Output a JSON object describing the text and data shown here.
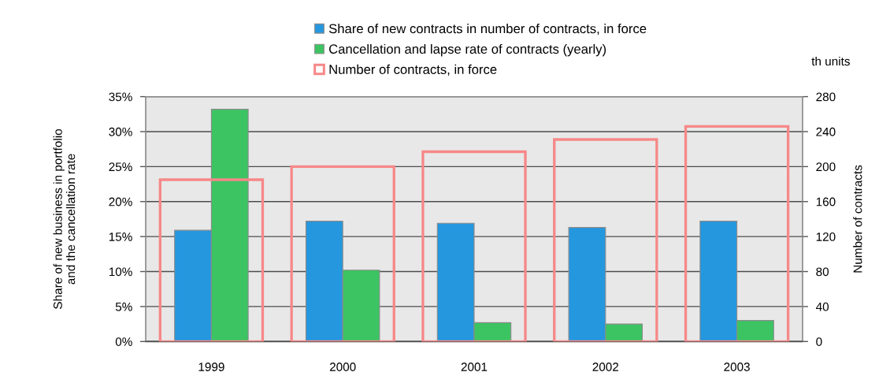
{
  "chart_data": {
    "type": "bar",
    "categories": [
      "1999",
      "2000",
      "2001",
      "2002",
      "2003"
    ],
    "ylabel": "Share of new business in portfolio\nand the cancellation rate",
    "y2label": "Number of contracts",
    "annotations": [
      "th units"
    ],
    "ylim": [
      0,
      35
    ],
    "yticks": [
      {
        "value": 0,
        "label": "0%"
      },
      {
        "value": 5,
        "label": "5%"
      },
      {
        "value": 10,
        "label": "10%"
      },
      {
        "value": 15,
        "label": "15%"
      },
      {
        "value": 20,
        "label": "20%"
      },
      {
        "value": 25,
        "label": "25%"
      },
      {
        "value": 30,
        "label": "30%"
      },
      {
        "value": 35,
        "label": "35%"
      }
    ],
    "y2lim": [
      0,
      280
    ],
    "y2ticks": [
      0,
      40,
      80,
      120,
      160,
      200,
      240,
      280
    ],
    "grid": "y",
    "legend": "top",
    "series": [
      {
        "name": "Share of new contracts in number of contracts, in force",
        "color": "#2497df",
        "values": [
          15.9,
          17.2,
          16.9,
          16.3,
          17.2
        ]
      },
      {
        "name": "Cancellation and lapse rate of contracts (yearly)",
        "color": "#3cc463",
        "values": [
          33.2,
          10.2,
          2.7,
          2.5,
          3.0
        ]
      },
      {
        "name": "Number of contracts, in force",
        "color": "#f78888",
        "axis": "y2",
        "values": [
          185,
          200,
          217,
          231,
          246
        ]
      }
    ]
  }
}
